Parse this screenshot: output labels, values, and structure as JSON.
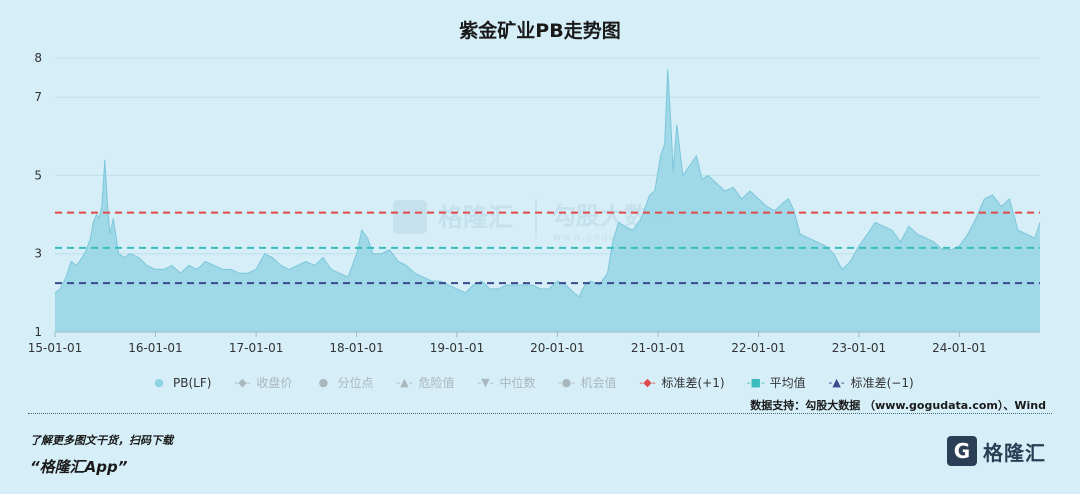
{
  "title": "紫金矿业PB走势图",
  "legend": [
    {
      "label": "PB(LF)",
      "symbol": "●",
      "enabled": true,
      "color": "#8dd3e3"
    },
    {
      "label": "收盘价",
      "symbol": "-◆-",
      "enabled": false,
      "color": "#aab7bd"
    },
    {
      "label": "分位点",
      "symbol": "●",
      "enabled": false,
      "color": "#aab7bd"
    },
    {
      "label": "危险值",
      "symbol": "-▲-",
      "enabled": false,
      "color": "#aab7bd"
    },
    {
      "label": "中位数",
      "symbol": "-▼-",
      "enabled": false,
      "color": "#aab7bd"
    },
    {
      "label": "机会值",
      "symbol": "-●-",
      "enabled": false,
      "color": "#aab7bd"
    },
    {
      "label": "标准差(+1)",
      "symbol": "-◆-",
      "enabled": true,
      "color": "#e04a4a"
    },
    {
      "label": "平均值",
      "symbol": "-■-",
      "enabled": true,
      "color": "#3bbcbc"
    },
    {
      "label": "标准差(−1)",
      "symbol": "-▲-",
      "enabled": true,
      "color": "#3a4a8a"
    }
  ],
  "source": "数据支持：勾股大数据 （www.gogudata.com）、Wind",
  "promo": {
    "line1": "了解更多图文干货，扫码下载",
    "line2": "“格隆汇App”"
  },
  "brand": {
    "mark": "G",
    "name": "格隆汇"
  },
  "watermark": {
    "left": "格隆汇",
    "right": "勾股大数据",
    "url": "www.gogudata.com"
  },
  "chart_data": {
    "type": "area",
    "title": "紫金矿业PB走势图",
    "x_ticks": [
      "15-01-01",
      "16-01-01",
      "17-01-01",
      "18-01-01",
      "19-01-01",
      "20-01-01",
      "21-01-01",
      "22-01-01",
      "23-01-01",
      "24-01-01"
    ],
    "y_ticks": [
      1,
      3,
      5,
      7,
      8
    ],
    "ylim": [
      1,
      8
    ],
    "reference_lines": [
      {
        "name": "标准差(+1)",
        "value": 4.05,
        "color": "#e04a4a"
      },
      {
        "name": "平均值",
        "value": 3.15,
        "color": "#3bbcbc"
      },
      {
        "name": "标准差(−1)",
        "value": 2.25,
        "color": "#3a4a8a"
      }
    ],
    "series": [
      {
        "name": "PB(LF)",
        "x": [
          "2015-01-01",
          "2015-01-20",
          "2015-02-10",
          "2015-03-01",
          "2015-03-20",
          "2015-04-10",
          "2015-04-25",
          "2015-05-10",
          "2015-05-20",
          "2015-06-01",
          "2015-06-10",
          "2015-06-20",
          "2015-07-01",
          "2015-07-10",
          "2015-07-20",
          "2015-08-01",
          "2015-08-20",
          "2015-09-10",
          "2015-10-01",
          "2015-11-01",
          "2015-12-01",
          "2016-01-01",
          "2016-02-01",
          "2016-03-01",
          "2016-04-01",
          "2016-05-01",
          "2016-06-01",
          "2016-07-01",
          "2016-08-01",
          "2016-09-01",
          "2016-10-01",
          "2016-11-01",
          "2016-12-01",
          "2017-01-01",
          "2017-02-01",
          "2017-03-01",
          "2017-04-01",
          "2017-05-01",
          "2017-06-01",
          "2017-07-01",
          "2017-08-01",
          "2017-09-01",
          "2017-10-01",
          "2017-11-01",
          "2017-12-01",
          "2018-01-01",
          "2018-01-20",
          "2018-02-10",
          "2018-03-01",
          "2018-04-01",
          "2018-05-01",
          "2018-06-01",
          "2018-07-01",
          "2018-08-01",
          "2018-09-01",
          "2018-10-01",
          "2018-11-01",
          "2018-12-01",
          "2019-01-01",
          "2019-02-01",
          "2019-03-01",
          "2019-04-01",
          "2019-05-01",
          "2019-06-01",
          "2019-07-01",
          "2019-08-01",
          "2019-09-01",
          "2019-10-01",
          "2019-11-01",
          "2019-12-01",
          "2020-01-01",
          "2020-02-01",
          "2020-03-01",
          "2020-03-20",
          "2020-04-10",
          "2020-05-01",
          "2020-06-01",
          "2020-07-01",
          "2020-07-20",
          "2020-08-10",
          "2020-09-01",
          "2020-10-01",
          "2020-11-01",
          "2020-12-01",
          "2020-12-20",
          "2021-01-10",
          "2021-01-25",
          "2021-02-05",
          "2021-02-15",
          "2021-02-25",
          "2021-03-10",
          "2021-04-01",
          "2021-05-01",
          "2021-05-20",
          "2021-06-10",
          "2021-07-01",
          "2021-08-01",
          "2021-09-01",
          "2021-10-01",
          "2021-11-01",
          "2021-12-01",
          "2022-01-01",
          "2022-02-01",
          "2022-03-01",
          "2022-04-01",
          "2022-04-20",
          "2022-05-10",
          "2022-06-01",
          "2022-07-01",
          "2022-08-01",
          "2022-09-01",
          "2022-10-01",
          "2022-11-01",
          "2022-12-01",
          "2023-01-01",
          "2023-02-01",
          "2023-03-01",
          "2023-04-01",
          "2023-05-01",
          "2023-06-01",
          "2023-07-01",
          "2023-08-01",
          "2023-09-01",
          "2023-10-01",
          "2023-11-01",
          "2023-12-01",
          "2024-01-01",
          "2024-02-01",
          "2024-03-01",
          "2024-04-01",
          "2024-05-01",
          "2024-06-01",
          "2024-07-01",
          "2024-08-01",
          "2024-09-01",
          "2024-10-01",
          "2024-10-20"
        ],
        "y": [
          2.0,
          2.1,
          2.4,
          2.8,
          2.7,
          2.9,
          3.1,
          3.4,
          3.8,
          4.0,
          3.9,
          4.2,
          5.4,
          4.3,
          3.5,
          3.9,
          3.0,
          2.9,
          3.0,
          2.9,
          2.7,
          2.6,
          2.6,
          2.7,
          2.5,
          2.7,
          2.6,
          2.8,
          2.7,
          2.6,
          2.6,
          2.5,
          2.5,
          2.6,
          3.0,
          2.9,
          2.7,
          2.6,
          2.7,
          2.8,
          2.7,
          2.9,
          2.6,
          2.5,
          2.4,
          3.0,
          3.6,
          3.4,
          3.0,
          3.0,
          3.1,
          2.8,
          2.7,
          2.5,
          2.4,
          2.3,
          2.3,
          2.2,
          2.1,
          2.0,
          2.2,
          2.3,
          2.1,
          2.1,
          2.2,
          2.2,
          2.2,
          2.2,
          2.1,
          2.1,
          2.3,
          2.2,
          2.0,
          1.9,
          2.2,
          2.3,
          2.2,
          2.5,
          3.3,
          3.8,
          3.7,
          3.6,
          3.9,
          4.5,
          4.6,
          5.5,
          5.8,
          7.7,
          6.5,
          5.1,
          6.3,
          5.0,
          5.3,
          5.5,
          4.9,
          5.0,
          4.8,
          4.6,
          4.7,
          4.4,
          4.6,
          4.4,
          4.2,
          4.1,
          4.3,
          4.4,
          4.1,
          3.5,
          3.4,
          3.3,
          3.2,
          3.0,
          2.6,
          2.8,
          3.2,
          3.5,
          3.8,
          3.7,
          3.6,
          3.3,
          3.7,
          3.5,
          3.4,
          3.3,
          3.1,
          3.1,
          3.2,
          3.5,
          3.9,
          4.4,
          4.5,
          4.2,
          4.4,
          3.6,
          3.5,
          3.4,
          3.8
        ]
      }
    ]
  }
}
